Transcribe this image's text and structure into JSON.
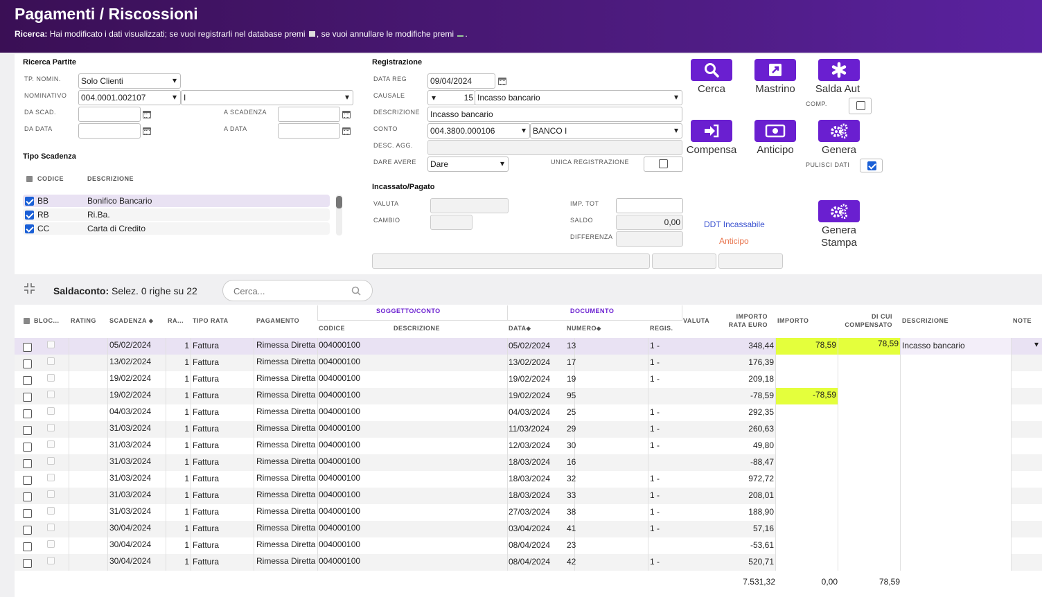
{
  "title": "Pagamenti / Riscossioni",
  "subtitle": {
    "prefix": "Ricerca:",
    "text": "Hai modificato i dati visualizzati; se vuoi registrarli nel database premi",
    "mid": ", se vuoi annullare le modifiche premi",
    "end": "."
  },
  "ricerca": {
    "section_title": "Ricerca Partite",
    "tp_nomin_label": "TP. NOMIN.",
    "tp_nomin_value": "Solo Clienti",
    "nominativo_label": "NOMINATIVO",
    "nominativo_code": "004.0001.002107",
    "nominativo_name": "I",
    "da_scad_label": "DA SCAD.",
    "a_scadenza_label": "A SCADENZA",
    "da_data_label": "DA DATA",
    "a_data_label": "A DATA",
    "tipo_scadenza_title": "Tipo Scadenza",
    "col_codice": "CODICE",
    "col_descrizione": "DESCRIZIONE",
    "types": [
      {
        "code": "BB",
        "desc": "Bonifico Bancario",
        "checked": true
      },
      {
        "code": "RB",
        "desc": "Ri.Ba.",
        "checked": true
      },
      {
        "code": "CC",
        "desc": "Carta di Credito",
        "checked": true
      }
    ]
  },
  "registrazione": {
    "section_title": "Registrazione",
    "data_reg_label": "DATA REG",
    "data_reg": "09/04/2024",
    "causale_label": "CAUSALE",
    "causale_code": "15",
    "causale_desc": "Incasso bancario",
    "descrizione_label": "DESCRIZIONE",
    "descrizione": "Incasso bancario",
    "conto_label": "CONTO",
    "conto_code": "004.3800.000106",
    "conto_name": "BANCO I",
    "desc_agg_label": "DESC. AGG.",
    "dare_avere_label": "DARE AVERE",
    "dare_avere": "Dare",
    "unica_label": "UNICA REGISTRAZIONE"
  },
  "incassato": {
    "section_title": "Incassato/Pagato",
    "valuta_label": "VALUTA",
    "cambio_label": "CAMBIO",
    "imp_tot_label": "IMP. TOT",
    "saldo_label": "SALDO",
    "saldo": "0,00",
    "differenza_label": "DIFFERENZA",
    "ddt_link": "DDT Incassabile",
    "anticipo_link": "Anticipo"
  },
  "buttons": {
    "cerca": "Cerca",
    "mastrino": "Mastrino",
    "salda_aut": "Salda Aut",
    "compensa": "Compensa",
    "anticipo": "Anticipo",
    "genera": "Genera",
    "genera_stampa_1": "Genera",
    "genera_stampa_2": "Stampa",
    "comp_label": "COMP.",
    "pulisci_label": "PULISCI DATI"
  },
  "saldaconto": {
    "label": "Saldaconto:",
    "info": "Selez. 0 righe su 22",
    "search_placeholder": "Cerca..."
  },
  "table": {
    "h_bloc": "BLOC...",
    "h_rating": "RATING",
    "h_scadenza": "SCADENZA",
    "h_ra": "RA...",
    "h_tipo_rata": "TIPO RATA",
    "h_pagamento": "PAGAMENTO",
    "h_soggetto": "SOGGETTO/CONTO",
    "h_codice": "CODICE",
    "h_descrizione": "DESCRIZIONE",
    "h_documento": "DOCUMENTO",
    "h_data": "DATA",
    "h_numero": "NUMERO",
    "h_regis": "REGIS.",
    "h_valuta": "VALUTA",
    "h_importo_rata_1": "IMPORTO",
    "h_importo_rata_2": "RATA EURO",
    "h_importo": "IMPORTO",
    "h_dicui_1": "DI CUI",
    "h_dicui_2": "COMPENSATO",
    "h_desc": "DESCRIZIONE",
    "h_note": "NOTE",
    "rows": [
      {
        "scad": "05/02/2024",
        "ra": "1",
        "tipo": "Fattura",
        "pag": "Rimessa Diretta",
        "cod": "004000100",
        "data": "05/02/2024",
        "num": "13",
        "reg": "1 -",
        "imp": "348,44",
        "importo": "78,59",
        "dicui": "78,59",
        "desc": "Incasso bancario"
      },
      {
        "scad": "13/02/2024",
        "ra": "1",
        "tipo": "Fattura",
        "pag": "Rimessa Diretta",
        "cod": "004000100",
        "data": "13/02/2024",
        "num": "17",
        "reg": "1 -",
        "imp": "176,39",
        "importo": "",
        "dicui": "",
        "desc": ""
      },
      {
        "scad": "19/02/2024",
        "ra": "1",
        "tipo": "Fattura",
        "pag": "Rimessa Diretta",
        "cod": "004000100",
        "data": "19/02/2024",
        "num": "19",
        "reg": "1 -",
        "imp": "209,18",
        "importo": "",
        "dicui": "",
        "desc": ""
      },
      {
        "scad": "19/02/2024",
        "ra": "1",
        "tipo": "Fattura",
        "pag": "Rimessa Diretta",
        "cod": "004000100",
        "data": "19/02/2024",
        "num": "95",
        "reg": "",
        "imp": "-78,59",
        "importo": "-78,59",
        "dicui": "",
        "desc": ""
      },
      {
        "scad": "04/03/2024",
        "ra": "1",
        "tipo": "Fattura",
        "pag": "Rimessa Diretta",
        "cod": "004000100",
        "data": "04/03/2024",
        "num": "25",
        "reg": "1 -",
        "imp": "292,35",
        "importo": "",
        "dicui": "",
        "desc": ""
      },
      {
        "scad": "31/03/2024",
        "ra": "1",
        "tipo": "Fattura",
        "pag": "Rimessa Diretta",
        "cod": "004000100",
        "data": "11/03/2024",
        "num": "29",
        "reg": "1 -",
        "imp": "260,63",
        "importo": "",
        "dicui": "",
        "desc": ""
      },
      {
        "scad": "31/03/2024",
        "ra": "1",
        "tipo": "Fattura",
        "pag": "Rimessa Diretta",
        "cod": "004000100",
        "data": "12/03/2024",
        "num": "30",
        "reg": "1 -",
        "imp": "49,80",
        "importo": "",
        "dicui": "",
        "desc": ""
      },
      {
        "scad": "31/03/2024",
        "ra": "1",
        "tipo": "Fattura",
        "pag": "Rimessa Diretta",
        "cod": "004000100",
        "data": "18/03/2024",
        "num": "16",
        "reg": "",
        "imp": "-88,47",
        "importo": "",
        "dicui": "",
        "desc": ""
      },
      {
        "scad": "31/03/2024",
        "ra": "1",
        "tipo": "Fattura",
        "pag": "Rimessa Diretta",
        "cod": "004000100",
        "data": "18/03/2024",
        "num": "32",
        "reg": "1 -",
        "imp": "972,72",
        "importo": "",
        "dicui": "",
        "desc": ""
      },
      {
        "scad": "31/03/2024",
        "ra": "1",
        "tipo": "Fattura",
        "pag": "Rimessa Diretta",
        "cod": "004000100",
        "data": "18/03/2024",
        "num": "33",
        "reg": "1 -",
        "imp": "208,01",
        "importo": "",
        "dicui": "",
        "desc": ""
      },
      {
        "scad": "31/03/2024",
        "ra": "1",
        "tipo": "Fattura",
        "pag": "Rimessa Diretta",
        "cod": "004000100",
        "data": "27/03/2024",
        "num": "38",
        "reg": "1 -",
        "imp": "188,90",
        "importo": "",
        "dicui": "",
        "desc": ""
      },
      {
        "scad": "30/04/2024",
        "ra": "1",
        "tipo": "Fattura",
        "pag": "Rimessa Diretta",
        "cod": "004000100",
        "data": "03/04/2024",
        "num": "41",
        "reg": "1 -",
        "imp": "57,16",
        "importo": "",
        "dicui": "",
        "desc": ""
      },
      {
        "scad": "30/04/2024",
        "ra": "1",
        "tipo": "Fattura",
        "pag": "Rimessa Diretta",
        "cod": "004000100",
        "data": "08/04/2024",
        "num": "23",
        "reg": "",
        "imp": "-53,61",
        "importo": "",
        "dicui": "",
        "desc": ""
      },
      {
        "scad": "30/04/2024",
        "ra": "1",
        "tipo": "Fattura",
        "pag": "Rimessa Diretta",
        "cod": "004000100",
        "data": "08/04/2024",
        "num": "42",
        "reg": "1 -",
        "imp": "520,71",
        "importo": "",
        "dicui": "",
        "desc": ""
      }
    ],
    "totals": {
      "imp": "7.531,32",
      "importo": "0,00",
      "dicui": "78,59"
    }
  },
  "colors": {
    "brand": "#6a1fd0",
    "highlight": "#e4ff3c",
    "selected_row": "#e9e2f3"
  }
}
